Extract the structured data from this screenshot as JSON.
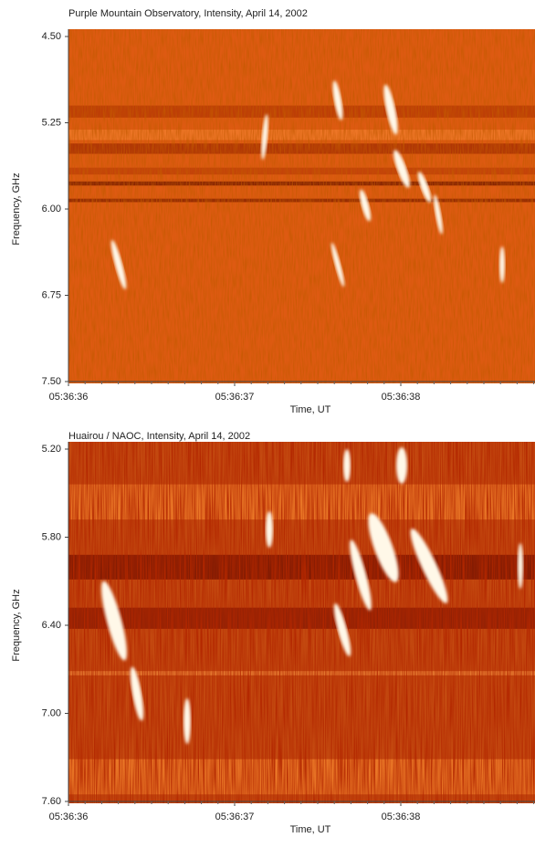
{
  "chart_data": [
    {
      "type": "spectrogram",
      "title": "Purple Mountain Observatory, Intensity, April 14, 2002",
      "xlabel": "Time, UT",
      "ylabel": "Frequency, GHz",
      "ylim": [
        7.5,
        4.5
      ],
      "yticks": [
        {
          "value": 4.5,
          "label": "4.50"
        },
        5.25,
        {
          "value": 6,
          "label": "6.00"
        },
        6.75,
        {
          "value": 7.5,
          "label": "7.50"
        }
      ],
      "xticks": [
        "05:36:36",
        "05:36:37",
        "05:36:38"
      ]
    },
    {
      "type": "spectrogram",
      "title": "Huairou / NAOC, Intensity, April 14, 2002",
      "xlabel": "Time, UT",
      "ylabel": "Frequency, GHz",
      "ylim": [
        7.6,
        5.2
      ],
      "yticks": [
        {
          "value": 5.2,
          "label": "5.20"
        },
        {
          "value": 5.8,
          "label": "5.80"
        },
        {
          "value": 6.4,
          "label": "6.40"
        },
        {
          "value": 7,
          "label": "7.00"
        },
        {
          "value": 7.6,
          "label": "7.60"
        }
      ],
      "xticks": [
        "05:36:36",
        "05:36:37",
        "05:36:38"
      ]
    }
  ]
}
